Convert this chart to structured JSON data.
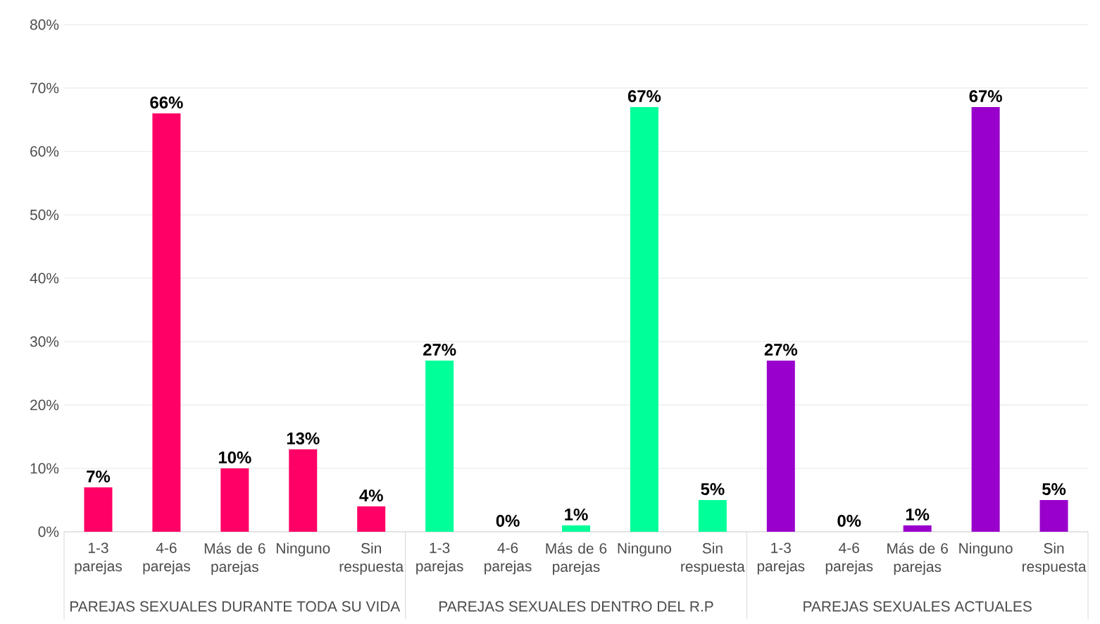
{
  "chart_data": {
    "type": "bar",
    "categories": [
      "1-3 parejas",
      "4-6 parejas",
      "Más de 6 parejas",
      "Ninguno",
      "Sin respuesta",
      "1-3 parejas",
      "4-6 parejas",
      "Más de 6 parejas",
      "Ninguno",
      "Sin respuesta",
      "1-3 parejas",
      "4-6 parejas",
      "Más de 6 parejas",
      "Ninguno",
      "Sin respuesta"
    ],
    "values": [
      7,
      66,
      10,
      13,
      4,
      27,
      0,
      1,
      67,
      5,
      27,
      0,
      1,
      67,
      5
    ],
    "value_labels": [
      "7%",
      "66%",
      "10%",
      "13%",
      "4%",
      "27%",
      "0%",
      "1%",
      "67%",
      "5%",
      "27%",
      "0%",
      "1%",
      "67%",
      "5%"
    ],
    "colors": [
      "#ff0066",
      "#ff0066",
      "#ff0066",
      "#ff0066",
      "#ff0066",
      "#00ff99",
      "#00ff99",
      "#00ff99",
      "#00ff99",
      "#00ff99",
      "#9900cc",
      "#9900cc",
      "#9900cc",
      "#9900cc",
      "#9900cc"
    ],
    "annotations": [
      "PAREJAS SEXUALES DURANTE TODA SU VIDA",
      "PAREJAS SEXUALES DENTRO DEL R.P",
      "PAREJAS SEXUALES ACTUALES"
    ],
    "ylim": [
      0,
      80
    ],
    "yticks": [
      {
        "value": 0,
        "label": "0%"
      },
      {
        "value": 10,
        "label": "10%"
      },
      {
        "value": 20,
        "label": "20%"
      },
      {
        "value": 30,
        "label": "30%"
      },
      {
        "value": 40,
        "label": "40%"
      },
      {
        "value": 50,
        "label": "50%"
      },
      {
        "value": 60,
        "label": "60%"
      },
      {
        "value": 70,
        "label": "70%"
      },
      {
        "value": 80,
        "label": "80%"
      }
    ],
    "grid": "y"
  }
}
